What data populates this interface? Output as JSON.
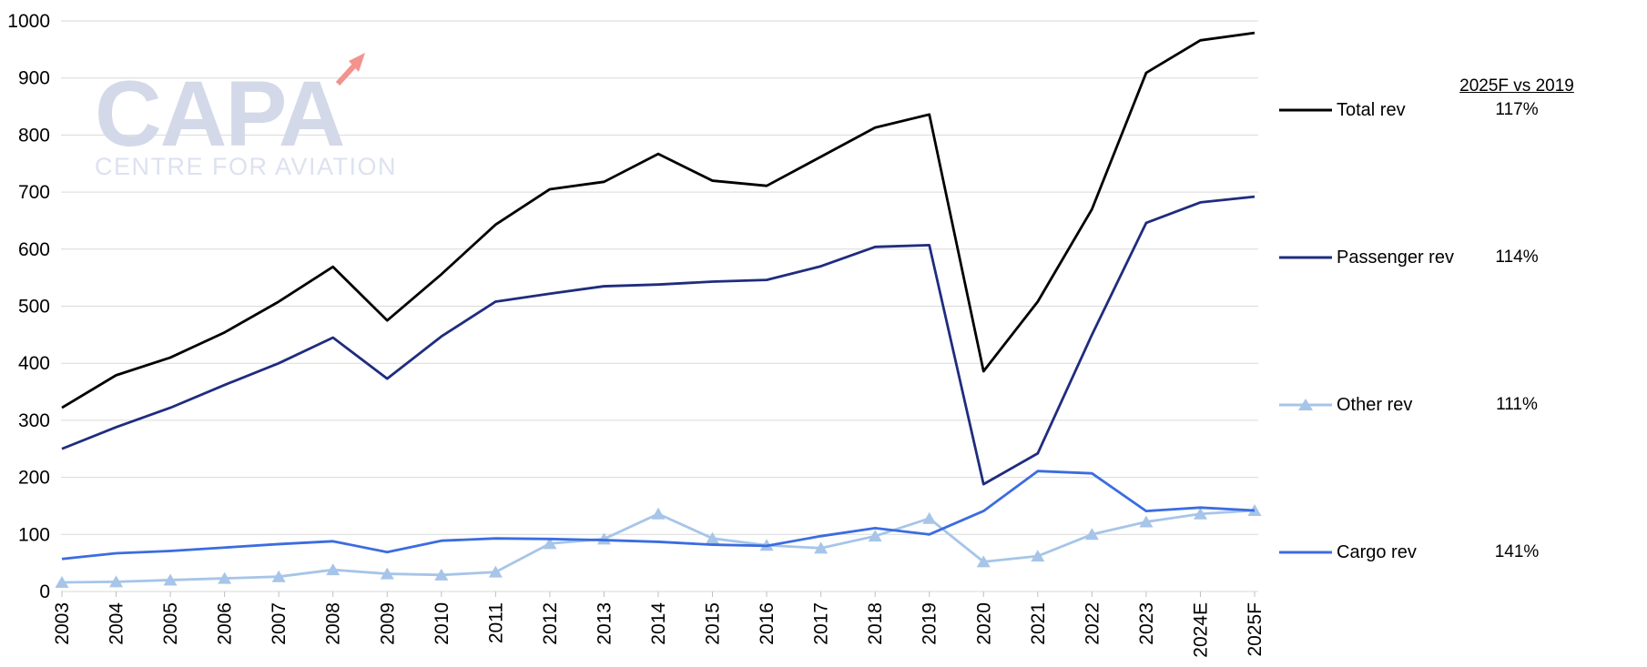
{
  "watermark": {
    "brand": "CAPA",
    "tagline": "CENTRE FOR AVIATION",
    "brand_color": "#D3D9E8",
    "arrow_color": "#F2938E"
  },
  "comparison": {
    "header": "2025F vs 2019",
    "items": [
      {
        "label": "Total rev",
        "pct": "117%"
      },
      {
        "label": "Passenger rev",
        "pct": "114%"
      },
      {
        "label": "Other rev",
        "pct": "111%"
      },
      {
        "label": "Cargo rev",
        "pct": "141%"
      }
    ]
  },
  "chart_data": {
    "type": "line",
    "title": "",
    "xlabel": "",
    "ylabel": "",
    "categories": [
      "2003",
      "2004",
      "2005",
      "2006",
      "2007",
      "2008",
      "2009",
      "2010",
      "2011",
      "2012",
      "2013",
      "2014",
      "2015",
      "2016",
      "2017",
      "2018",
      "2019",
      "2020",
      "2021",
      "2022",
      "2023",
      "2024E",
      "2025F"
    ],
    "series": [
      {
        "name": "Total rev",
        "color": "#000000",
        "marker": "none",
        "values": [
          322,
          379,
          410,
          454,
          508,
          569,
          475,
          556,
          643,
          705,
          718,
          767,
          720,
          711,
          762,
          813,
          836,
          386,
          508,
          670,
          909,
          966,
          979
        ]
      },
      {
        "name": "Passenger rev",
        "color": "#1F2C7E",
        "marker": "none",
        "values": [
          250,
          288,
          322,
          362,
          400,
          445,
          373,
          447,
          508,
          522,
          535,
          538,
          543,
          546,
          570,
          604,
          607,
          188,
          242,
          450,
          646,
          682,
          692
        ]
      },
      {
        "name": "Other rev",
        "color": "#A6C5E8",
        "marker": "triangle",
        "values": [
          16,
          17,
          20,
          23,
          26,
          38,
          31,
          29,
          34,
          84,
          92,
          136,
          93,
          81,
          76,
          97,
          128,
          52,
          62,
          100,
          122,
          136,
          142
        ]
      },
      {
        "name": "Cargo rev",
        "color": "#3B6CE0",
        "marker": "none",
        "values": [
          57,
          67,
          71,
          77,
          83,
          88,
          69,
          89,
          93,
          92,
          90,
          87,
          82,
          80,
          97,
          111,
          100,
          141,
          211,
          207,
          141,
          147,
          142
        ]
      }
    ],
    "ylim": [
      0,
      1000
    ],
    "ytick_step": 100,
    "yticks": [
      0,
      100,
      200,
      300,
      400,
      500,
      600,
      700,
      800,
      900,
      1000
    ],
    "grid": true,
    "gridline_color": "#D9D9D9",
    "tick_color": "#BFBFBF",
    "axis_text_color": "#000000",
    "legend_position": "right"
  }
}
